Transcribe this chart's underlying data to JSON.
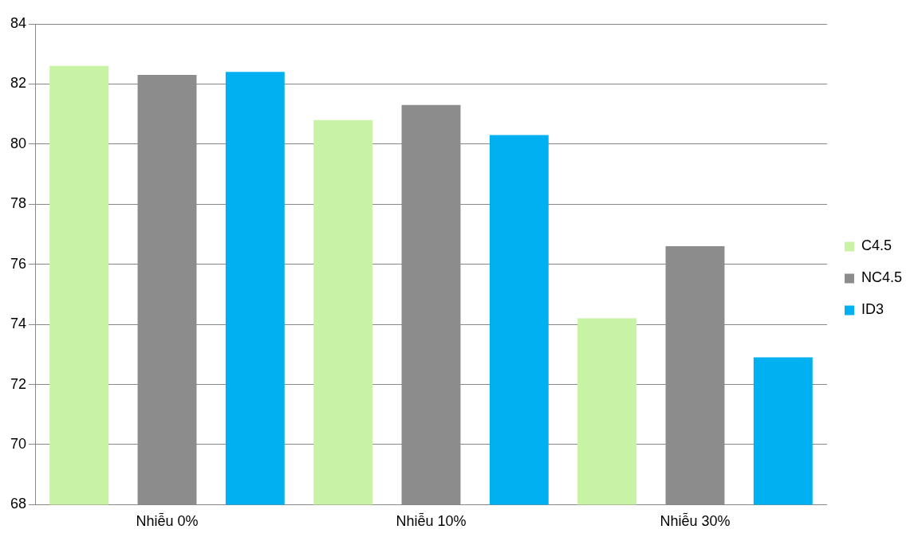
{
  "chart_data": {
    "type": "bar",
    "categories": [
      "Nhiễu 0%",
      "Nhiễu 10%",
      "Nhiễu 30%"
    ],
    "series": [
      {
        "name": "C4.5",
        "color": "#c8f2a4",
        "values": [
          82.6,
          80.8,
          74.2
        ]
      },
      {
        "name": "NC4.5",
        "color": "#8c8c8c",
        "values": [
          82.3,
          81.3,
          76.6
        ]
      },
      {
        "name": "ID3",
        "color": "#00b0f0",
        "values": [
          82.4,
          80.3,
          72.9
        ]
      }
    ],
    "ylim": [
      68,
      84
    ],
    "yticks": [
      68,
      70,
      72,
      74,
      76,
      78,
      80,
      82,
      84
    ],
    "grid": "y",
    "legend": "right"
  }
}
